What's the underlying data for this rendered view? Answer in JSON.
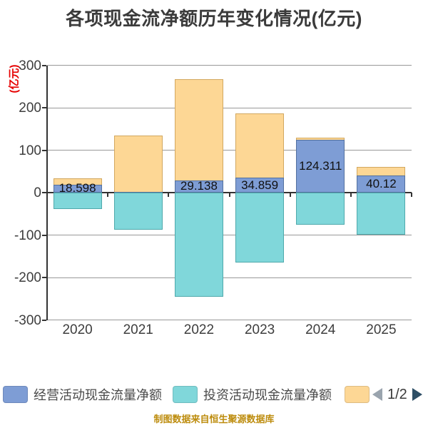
{
  "header": {
    "title": "各项现金流净额历年变化情况(亿元)"
  },
  "y_axis": {
    "unit_label": "(亿元)",
    "unit_color": "#e60000"
  },
  "legend": {
    "items": [
      {
        "label": "经营活动现金流量净额",
        "color": "#7E9DD5"
      },
      {
        "label": "投资活动现金流量净额",
        "color": "#80D7DA"
      },
      {
        "label": "",
        "color": "#FDD795"
      }
    ],
    "pager": {
      "current": "1/2"
    }
  },
  "footer": {
    "credit": "制图数据来自恒生聚源数据库"
  },
  "chart_data": {
    "type": "bar",
    "title": "各项现金流净额历年变化情况(亿元)",
    "ylabel": "(亿元)",
    "categories": [
      "2020",
      "2021",
      "2022",
      "2023",
      "2024",
      "2025"
    ],
    "series": [
      {
        "name": "经营活动现金流量净额",
        "color": "#7E9DD5",
        "border_color": "#53719f",
        "values": [
          18.598,
          1.5,
          29.138,
          34.859,
          124.311,
          40.12
        ],
        "data_labels": [
          "18.598",
          "",
          "29.138",
          "34.859",
          "124.311",
          "40.12"
        ]
      },
      {
        "name": "投资活动现金流量净额",
        "color": "#80D7DA",
        "border_color": "#4fa9ac",
        "values": [
          -39,
          -88,
          -245,
          -165,
          -76,
          -99
        ]
      },
      {
        "name": "",
        "color": "#FDD795",
        "border_color": "#d2a860",
        "values": [
          33,
          134,
          267,
          187,
          129,
          61
        ]
      }
    ],
    "ylim": [
      -300,
      300
    ],
    "yticks": [
      300,
      200,
      100,
      0,
      -100,
      -200,
      -300
    ],
    "grid": true,
    "legend_position": "bottom"
  }
}
